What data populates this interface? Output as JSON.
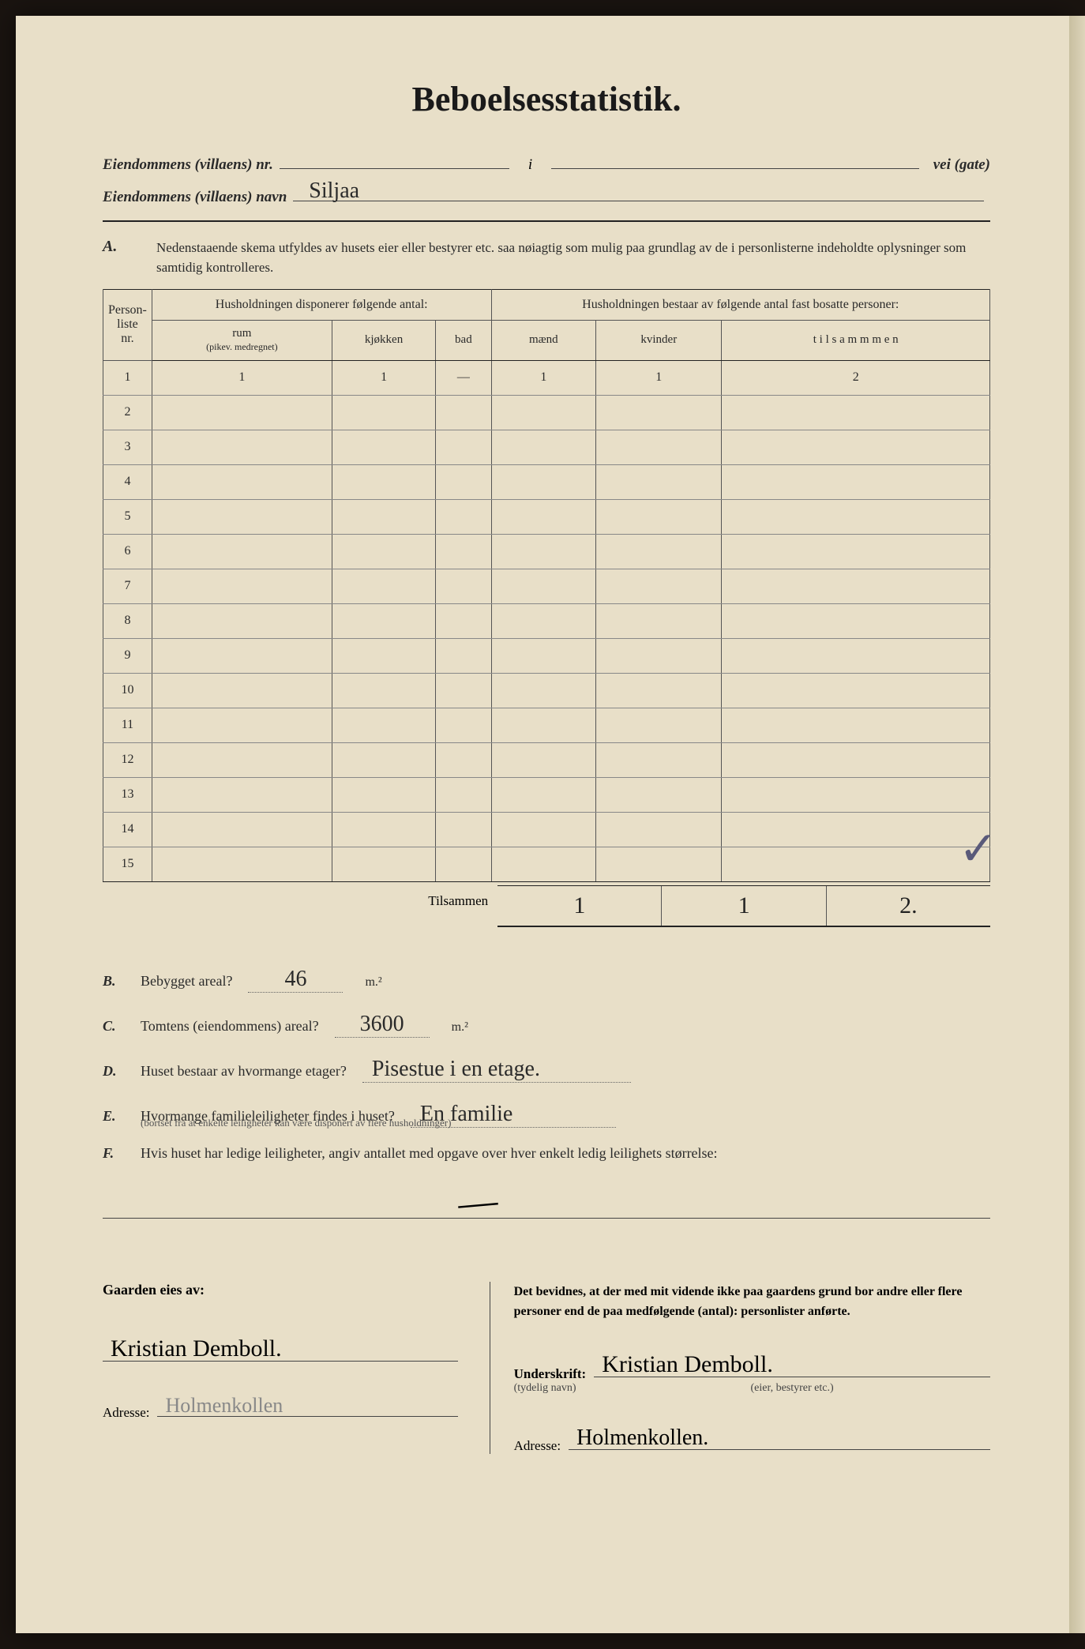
{
  "title": "Beboelsesstatistik.",
  "header": {
    "property_nr_label": "Eiendommens (villaens) nr.",
    "i_sep": "i",
    "vei_label": "vei (gate)",
    "property_name_label": "Eiendommens (villaens) navn",
    "property_name_value": "Siljaa"
  },
  "section_a": {
    "letter": "A.",
    "instruction": "Nedenstaaende skema utfyldes av husets eier eller bestyrer etc. saa nøiagtig som mulig paa grundlag av de i personlisterne indeholdte oplysninger som samtidig kontrolleres."
  },
  "table": {
    "col_person": "Person-\nliste\nnr.",
    "header_left": "Husholdningen disponerer følgende antal:",
    "header_right": "Husholdningen bestaar av følgende antal fast bosatte personer:",
    "sub_rum": "rum",
    "sub_rum_note": "(pikev. medregnet)",
    "sub_kjokken": "kjøkken",
    "sub_bad": "bad",
    "sub_maend": "mænd",
    "sub_kvinder": "kvinder",
    "sub_tilsammen": "t i l s a m m m e n",
    "row_count": 15,
    "row1": {
      "rum": "1",
      "kjokken": "1",
      "bad": "—",
      "maend": "1",
      "kvinder": "1",
      "tilsammen": "2"
    },
    "tilsammen_label": "Tilsammen",
    "totals": {
      "maend": "1",
      "kvinder": "1",
      "tilsammen": "2."
    }
  },
  "questions": {
    "B": {
      "letter": "B.",
      "text": "Bebygget areal?",
      "value": "46",
      "unit": "m.²"
    },
    "C": {
      "letter": "C.",
      "text": "Tomtens (eiendommens) areal?",
      "value": "3600",
      "unit": "m.²"
    },
    "D": {
      "letter": "D.",
      "text": "Huset bestaar av hvormange etager?",
      "value": "Pisestue i en etage."
    },
    "E": {
      "letter": "E.",
      "text": "Hvormange familieleiligheter findes i huset?",
      "value": "En familie",
      "sub": "(bortset fra at enkelte leiligheter kan være disponert av flere husholdninger)"
    },
    "F": {
      "letter": "F.",
      "text": "Hvis huset har ledige leiligheter, angiv antallet med opgave over hver enkelt ledig leilighets størrelse:",
      "slash": "—"
    }
  },
  "footer": {
    "left": {
      "owner_label": "Gaarden eies av:",
      "owner_sig": "Kristian Demboll.",
      "address_label": "Adresse:",
      "address_value": "Holmenkollen"
    },
    "right": {
      "attest_text": "Det bevidnes, at der med mit vidende ikke paa gaardens grund bor andre eller flere personer end de paa medfølgende (antal):                      personlister anførte.",
      "underskrift_label": "Underskrift:",
      "underskrift_caption_left": "(tydelig navn)",
      "underskrift_caption_right": "(eier, bestyrer etc.)",
      "underskrift_value": "Kristian Demboll.",
      "address_label": "Adresse:",
      "address_value": "Holmenkollen."
    }
  },
  "styling": {
    "page_bg": "#e8dfc8",
    "outer_bg": "#1a1410",
    "text_color": "#2a2a2a",
    "rule_color": "#222222",
    "handwriting_font": "Brush Script MT",
    "body_font": "Georgia",
    "title_fontsize": 44,
    "body_fontsize": 18
  }
}
